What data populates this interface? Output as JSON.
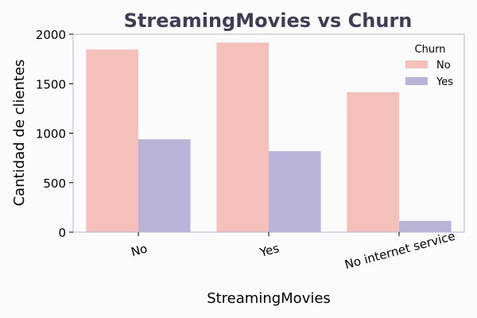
{
  "chart_data": {
    "type": "bar",
    "title": "StreamingMovies vs Churn",
    "xlabel": "StreamingMovies",
    "ylabel": "Cantidad de clientes",
    "categories": [
      "No",
      "Yes",
      "No internet service"
    ],
    "series": [
      {
        "name": "No",
        "values": [
          1845,
          1915,
          1413
        ],
        "color": "#f5bfba"
      },
      {
        "name": "Yes",
        "values": [
          938,
          818,
          113
        ],
        "color": "#bab3d8"
      }
    ],
    "ylim": [
      0,
      2000
    ],
    "yticks": [
      0,
      500,
      1000,
      1500,
      2000
    ],
    "legend": {
      "title": "Churn",
      "placement": "top-right"
    },
    "grid": false,
    "title_color": "#3f3d56",
    "frame_color": "#b8b3d9"
  }
}
